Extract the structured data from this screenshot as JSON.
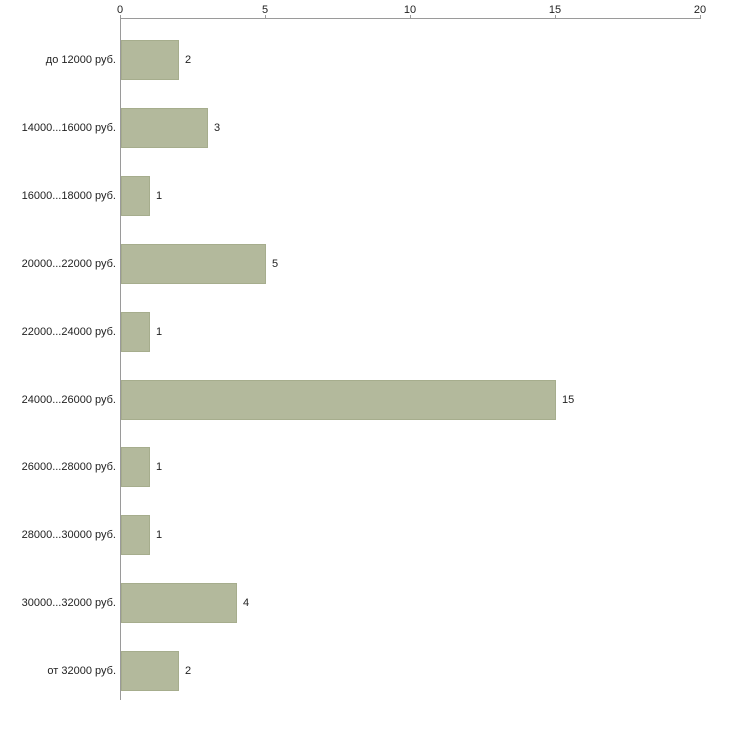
{
  "chart_data": {
    "type": "bar",
    "orientation": "horizontal",
    "title": "",
    "xlabel": "",
    "ylabel": "",
    "categories": [
      "до 12000 руб.",
      "14000...16000 руб.",
      "16000...18000 руб.",
      "20000...22000 руб.",
      "22000...24000 руб.",
      "24000...26000 руб.",
      "26000...28000 руб.",
      "28000...30000 руб.",
      "30000...32000 руб.",
      "от 32000 руб."
    ],
    "values": [
      2,
      3,
      1,
      5,
      1,
      15,
      1,
      1,
      4,
      2
    ],
    "xlim": [
      0,
      20
    ],
    "x_ticks": [
      0,
      5,
      10,
      15,
      20
    ],
    "grid": false,
    "legend": false,
    "bar_color": "#b3b99c",
    "bar_border_color": "#a6ad8d",
    "axis_color": "#9a9a9a",
    "text_color": "#222222",
    "background_color": "#ffffff"
  }
}
